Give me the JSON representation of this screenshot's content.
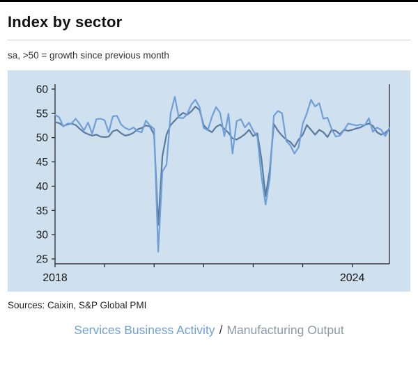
{
  "page": {
    "title": "Index by sector",
    "subtitle": "sa, >50 = growth since previous month",
    "sources": "Sources: Caixin, S&P Global PMI"
  },
  "legend": {
    "series1": "Services Business Activity",
    "separator": "/",
    "series2": "Manufacturing Output"
  },
  "colors": {
    "panel_bg": "#cfe0ef",
    "axis": "#1a1a1a",
    "tick_label": "#1a1a1a",
    "services": "#6f9fd8",
    "manufacturing": "#5a7a9f",
    "manufacturing_legend": "#8b9aa7",
    "legend_separator": "#333333"
  },
  "chart_data": {
    "type": "line",
    "title": "Index by sector",
    "subtitle": "sa, >50 = growth since previous month",
    "xlabel": "",
    "ylabel": "",
    "grid": false,
    "legend_position": "bottom",
    "ylim": [
      24,
      61
    ],
    "yticks": [
      25,
      30,
      35,
      40,
      45,
      50,
      55,
      60
    ],
    "x_tick_labels": [
      {
        "label": "2018",
        "index": 0
      },
      {
        "label": "2024",
        "index": 72
      }
    ],
    "x": [
      "2018-01",
      "2018-02",
      "2018-03",
      "2018-04",
      "2018-05",
      "2018-06",
      "2018-07",
      "2018-08",
      "2018-09",
      "2018-10",
      "2018-11",
      "2018-12",
      "2019-01",
      "2019-02",
      "2019-03",
      "2019-04",
      "2019-05",
      "2019-06",
      "2019-07",
      "2019-08",
      "2019-09",
      "2019-10",
      "2019-11",
      "2019-12",
      "2020-01",
      "2020-02",
      "2020-03",
      "2020-04",
      "2020-05",
      "2020-06",
      "2020-07",
      "2020-08",
      "2020-09",
      "2020-10",
      "2020-11",
      "2020-12",
      "2021-01",
      "2021-02",
      "2021-03",
      "2021-04",
      "2021-05",
      "2021-06",
      "2021-07",
      "2021-08",
      "2021-09",
      "2021-10",
      "2021-11",
      "2021-12",
      "2022-01",
      "2022-02",
      "2022-03",
      "2022-04",
      "2022-05",
      "2022-06",
      "2022-07",
      "2022-08",
      "2022-09",
      "2022-10",
      "2022-11",
      "2022-12",
      "2023-01",
      "2023-02",
      "2023-03",
      "2023-04",
      "2023-05",
      "2023-06",
      "2023-07",
      "2023-08",
      "2023-09",
      "2023-10",
      "2023-11",
      "2023-12",
      "2024-01",
      "2024-02",
      "2024-03",
      "2024-04",
      "2024-05",
      "2024-06",
      "2024-07",
      "2024-08",
      "2024-09",
      "2024-10"
    ],
    "series": [
      {
        "name": "Services Business Activity",
        "color": "#6f9fd8",
        "values": [
          54.7,
          54.2,
          52.3,
          52.9,
          52.9,
          53.9,
          52.8,
          51.5,
          53.1,
          50.8,
          53.8,
          53.9,
          53.6,
          51.1,
          54.4,
          54.5,
          52.7,
          52.0,
          51.6,
          52.1,
          51.3,
          51.1,
          53.5,
          52.5,
          51.8,
          26.5,
          43.0,
          44.4,
          55.0,
          58.4,
          54.1,
          54.0,
          54.8,
          56.8,
          57.8,
          56.3,
          52.0,
          51.5,
          54.3,
          56.3,
          55.1,
          50.3,
          54.9,
          46.7,
          53.4,
          53.8,
          52.1,
          53.1,
          51.4,
          50.2,
          42.0,
          36.2,
          41.4,
          54.5,
          55.5,
          55.0,
          49.3,
          48.4,
          46.7,
          48.0,
          52.9,
          55.0,
          57.8,
          56.4,
          57.1,
          53.9,
          54.1,
          51.8,
          50.2,
          50.4,
          51.5,
          52.9,
          52.7,
          52.5,
          52.7,
          52.5,
          54.0,
          51.2,
          52.1,
          51.6,
          50.3,
          52.0
        ]
      },
      {
        "name": "Manufacturing Output",
        "color": "#5a7a9f",
        "values": [
          53.2,
          53.0,
          52.4,
          52.7,
          52.9,
          52.6,
          51.8,
          51.1,
          50.7,
          50.4,
          50.6,
          50.2,
          50.1,
          50.2,
          51.3,
          51.6,
          50.9,
          50.4,
          50.6,
          51.0,
          51.7,
          52.0,
          52.5,
          52.3,
          50.6,
          32.0,
          46.2,
          50.6,
          52.6,
          53.5,
          54.4,
          55.1,
          54.7,
          55.4,
          56.4,
          55.7,
          52.6,
          51.6,
          51.1,
          52.2,
          52.7,
          51.8,
          51.0,
          49.8,
          49.6,
          50.1,
          50.7,
          51.6,
          50.3,
          50.9,
          45.6,
          37.9,
          43.2,
          52.8,
          51.4,
          50.4,
          49.6,
          49.1,
          48.1,
          49.6,
          50.6,
          52.6,
          51.6,
          50.6,
          51.6,
          51.1,
          50.1,
          51.6,
          51.4,
          50.7,
          51.6,
          51.4,
          51.6,
          51.9,
          52.1,
          52.6,
          52.9,
          52.4,
          51.1,
          50.6,
          51.0,
          51.8
        ]
      }
    ]
  }
}
